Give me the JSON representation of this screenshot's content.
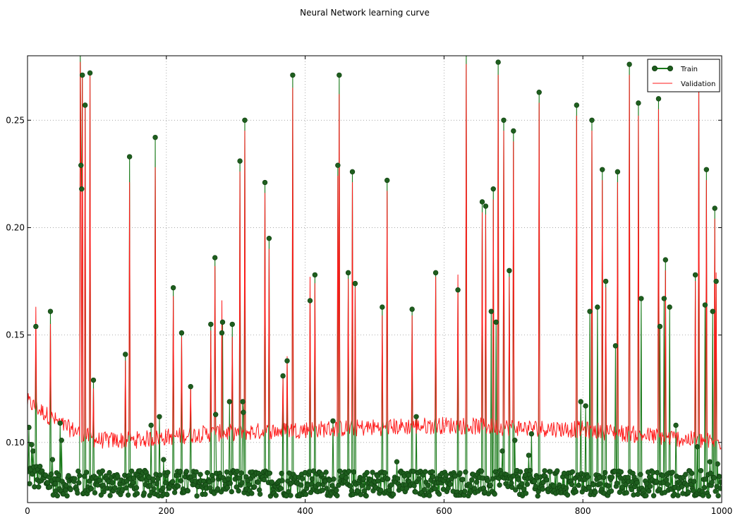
{
  "chart_data": {
    "type": "line",
    "title": "Neural Network learning curve",
    "xlabel": "",
    "ylabel": "",
    "xlim": [
      0,
      1000
    ],
    "ylim": [
      0.072,
      0.28
    ],
    "grid": true,
    "legend_position": "top-right",
    "x_ticks": [
      0,
      200,
      400,
      600,
      800,
      1000
    ],
    "y_ticks": [
      0.1,
      0.15,
      0.2,
      0.25
    ],
    "x_tick_labels": [
      "0",
      "200",
      "400",
      "600",
      "800",
      "1000"
    ],
    "y_tick_labels": [
      "0.10",
      "0.15",
      "0.20",
      "0.25"
    ],
    "series": [
      {
        "name": "Train",
        "color": "#1a7a1a",
        "marker_color": "#1e5e1e",
        "style": "line-with-circle-markers",
        "baseline": 0.081,
        "baseline_spread": 0.012,
        "spikes": [
          [
            2,
            0.107
          ],
          [
            4,
            0.088
          ],
          [
            6,
            0.099
          ],
          [
            8,
            0.096
          ],
          [
            12,
            0.154
          ],
          [
            33,
            0.161
          ],
          [
            36,
            0.092
          ],
          [
            47,
            0.109
          ],
          [
            49,
            0.101
          ],
          [
            76,
            0.281
          ],
          [
            77,
            0.229
          ],
          [
            78,
            0.218
          ],
          [
            79,
            0.271
          ],
          [
            83,
            0.257
          ],
          [
            90,
            0.272
          ],
          [
            95,
            0.129
          ],
          [
            141,
            0.141
          ],
          [
            147,
            0.233
          ],
          [
            178,
            0.108
          ],
          [
            184,
            0.242
          ],
          [
            190,
            0.112
          ],
          [
            196,
            0.092
          ],
          [
            210,
            0.172
          ],
          [
            222,
            0.151
          ],
          [
            235,
            0.126
          ],
          [
            264,
            0.155
          ],
          [
            270,
            0.186
          ],
          [
            271,
            0.113
          ],
          [
            280,
            0.151
          ],
          [
            281,
            0.156
          ],
          [
            291,
            0.119
          ],
          [
            295,
            0.155
          ],
          [
            306,
            0.231
          ],
          [
            310,
            0.119
          ],
          [
            311,
            0.114
          ],
          [
            313,
            0.25
          ],
          [
            342,
            0.221
          ],
          [
            348,
            0.195
          ],
          [
            368,
            0.131
          ],
          [
            374,
            0.138
          ],
          [
            382,
            0.271
          ],
          [
            407,
            0.166
          ],
          [
            414,
            0.178
          ],
          [
            440,
            0.11
          ],
          [
            447,
            0.229
          ],
          [
            449,
            0.271
          ],
          [
            462,
            0.179
          ],
          [
            468,
            0.226
          ],
          [
            472,
            0.174
          ],
          [
            511,
            0.163
          ],
          [
            518,
            0.222
          ],
          [
            532,
            0.091
          ],
          [
            554,
            0.162
          ],
          [
            560,
            0.112
          ],
          [
            588,
            0.179
          ],
          [
            620,
            0.171
          ],
          [
            632,
            0.281
          ],
          [
            655,
            0.212
          ],
          [
            660,
            0.21
          ],
          [
            668,
            0.161
          ],
          [
            671,
            0.218
          ],
          [
            675,
            0.156
          ],
          [
            678,
            0.277
          ],
          [
            684,
            0.096
          ],
          [
            686,
            0.25
          ],
          [
            694,
            0.18
          ],
          [
            700,
            0.245
          ],
          [
            702,
            0.101
          ],
          [
            722,
            0.094
          ],
          [
            726,
            0.104
          ],
          [
            737,
            0.263
          ],
          [
            791,
            0.257
          ],
          [
            797,
            0.119
          ],
          [
            804,
            0.117
          ],
          [
            810,
            0.161
          ],
          [
            813,
            0.25
          ],
          [
            821,
            0.163
          ],
          [
            828,
            0.227
          ],
          [
            833,
            0.175
          ],
          [
            847,
            0.145
          ],
          [
            850,
            0.226
          ],
          [
            867,
            0.276
          ],
          [
            880,
            0.258
          ],
          [
            884,
            0.167
          ],
          [
            909,
            0.26
          ],
          [
            911,
            0.154
          ],
          [
            917,
            0.167
          ],
          [
            919,
            0.185
          ],
          [
            925,
            0.163
          ],
          [
            934,
            0.108
          ],
          [
            962,
            0.178
          ],
          [
            965,
            0.098
          ],
          [
            967,
            0.271
          ],
          [
            976,
            0.164
          ],
          [
            978,
            0.227
          ],
          [
            983,
            0.091
          ],
          [
            987,
            0.161
          ],
          [
            990,
            0.209
          ],
          [
            992,
            0.175
          ],
          [
            994,
            0.09
          ]
        ]
      },
      {
        "name": "Validation",
        "color": "#ff1a1a",
        "style": "line",
        "trend": [
          [
            0,
            0.119
          ],
          [
            50,
            0.108
          ],
          [
            100,
            0.101
          ],
          [
            150,
            0.101
          ],
          [
            250,
            0.104
          ],
          [
            400,
            0.106
          ],
          [
            600,
            0.108
          ],
          [
            800,
            0.106
          ],
          [
            1000,
            0.1
          ]
        ],
        "noise_amplitude": 0.004,
        "spikes": [
          [
            12,
            0.163
          ],
          [
            33,
            0.155
          ],
          [
            76,
            0.277
          ],
          [
            77,
            0.218
          ],
          [
            79,
            0.271
          ],
          [
            83,
            0.257
          ],
          [
            90,
            0.271
          ],
          [
            95,
            0.125
          ],
          [
            141,
            0.138
          ],
          [
            147,
            0.221
          ],
          [
            184,
            0.228
          ],
          [
            210,
            0.168
          ],
          [
            222,
            0.149
          ],
          [
            235,
            0.126
          ],
          [
            264,
            0.152
          ],
          [
            270,
            0.182
          ],
          [
            280,
            0.166
          ],
          [
            295,
            0.149
          ],
          [
            306,
            0.226
          ],
          [
            313,
            0.245
          ],
          [
            342,
            0.216
          ],
          [
            348,
            0.19
          ],
          [
            368,
            0.13
          ],
          [
            374,
            0.14
          ],
          [
            382,
            0.265
          ],
          [
            407,
            0.177
          ],
          [
            414,
            0.174
          ],
          [
            447,
            0.224
          ],
          [
            449,
            0.262
          ],
          [
            462,
            0.176
          ],
          [
            468,
            0.221
          ],
          [
            472,
            0.172
          ],
          [
            511,
            0.159
          ],
          [
            518,
            0.217
          ],
          [
            554,
            0.159
          ],
          [
            588,
            0.177
          ],
          [
            620,
            0.178
          ],
          [
            632,
            0.276
          ],
          [
            655,
            0.207
          ],
          [
            660,
            0.206
          ],
          [
            671,
            0.213
          ],
          [
            678,
            0.271
          ],
          [
            686,
            0.245
          ],
          [
            694,
            0.177
          ],
          [
            700,
            0.24
          ],
          [
            737,
            0.258
          ],
          [
            791,
            0.252
          ],
          [
            813,
            0.245
          ],
          [
            828,
            0.222
          ],
          [
            833,
            0.172
          ],
          [
            850,
            0.221
          ],
          [
            867,
            0.271
          ],
          [
            880,
            0.252
          ],
          [
            909,
            0.255
          ],
          [
            919,
            0.18
          ],
          [
            962,
            0.175
          ],
          [
            967,
            0.266
          ],
          [
            978,
            0.222
          ],
          [
            990,
            0.204
          ],
          [
            992,
            0.179
          ]
        ]
      }
    ]
  }
}
